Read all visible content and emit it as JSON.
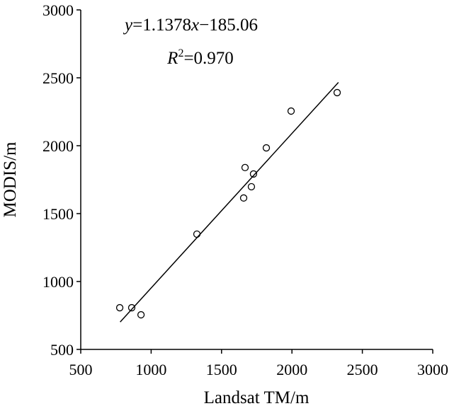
{
  "chart_data": {
    "type": "scatter",
    "x_label": "Landsat TM/m",
    "y_label": "MODIS/m",
    "equation": [
      "y",
      "=1.1378",
      "x",
      "−185.06"
    ],
    "r_squared": [
      "R",
      "2",
      "=0.970"
    ],
    "x": [
      777,
      862,
      928,
      1325,
      1657,
      1667,
      1712,
      1727,
      1818,
      1994,
      2321
    ],
    "series": [
      {
        "name": "MODIS",
        "color": "#000000",
        "values": [
          807,
          807,
          755,
          1349,
          1615,
          1839,
          1698,
          1792,
          1984,
          2255,
          2391
        ]
      }
    ],
    "fit_line": {
      "x": [
        780,
        2330
      ],
      "y": [
        702,
        2466
      ],
      "color": "#000000"
    },
    "xlim": [
      500,
      3000
    ],
    "xticks": [
      500,
      1000,
      1500,
      2000,
      2500,
      3000
    ],
    "ylim": [
      500,
      3000
    ],
    "yticks": [
      500,
      1000,
      1500,
      2000,
      2500,
      3000
    ],
    "grid": false
  }
}
